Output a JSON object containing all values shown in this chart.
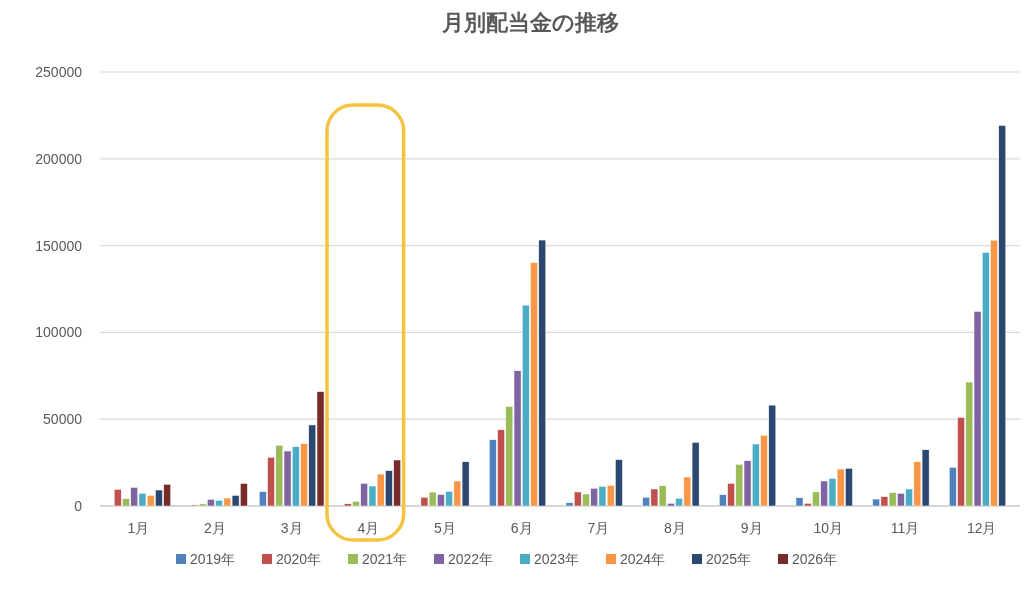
{
  "chart_data": {
    "type": "bar",
    "title": "月別配当金の推移",
    "categories": [
      "1月",
      "2月",
      "3月",
      "4月",
      "5月",
      "6月",
      "7月",
      "8月",
      "9月",
      "10月",
      "11月",
      "12月"
    ],
    "series": [
      {
        "name": "2019年",
        "color": "#4f81bd",
        "values": [
          null,
          null,
          8300,
          null,
          null,
          38200,
          1900,
          5000,
          6500,
          4800,
          4000,
          22300
        ]
      },
      {
        "name": "2020年",
        "color": "#c0504d",
        "values": [
          9600,
          600,
          28000,
          1300,
          5000,
          43900,
          8100,
          9800,
          13000,
          1500,
          5400,
          51000
        ]
      },
      {
        "name": "2021年",
        "color": "#9bbb59",
        "values": [
          4200,
          1200,
          35000,
          2700,
          8000,
          57300,
          6900,
          11700,
          24000,
          8100,
          7700,
          71400
        ]
      },
      {
        "name": "2022年",
        "color": "#8064a2",
        "values": [
          10700,
          3800,
          31700,
          13000,
          6500,
          77900,
          10200,
          1500,
          26100,
          14400,
          7300,
          112100
        ]
      },
      {
        "name": "2023年",
        "color": "#4bacc6",
        "values": [
          7300,
          3300,
          34200,
          11500,
          8400,
          115700,
          11300,
          4400,
          35700,
          15900,
          9800,
          146000
        ]
      },
      {
        "name": "2024年",
        "color": "#f79646",
        "values": [
          6100,
          4600,
          35900,
          18400,
          14400,
          140200,
          11900,
          16700,
          40700,
          21300,
          25500,
          153100
        ]
      },
      {
        "name": "2025年",
        "color": "#2c4770",
        "values": [
          9200,
          6100,
          46700,
          20400,
          25500,
          153200,
          26700,
          36600,
          58100,
          21700,
          32400,
          219200
        ]
      },
      {
        "name": "2026年",
        "color": "#772c2a",
        "values": [
          12500,
          13000,
          65900,
          26500,
          null,
          null,
          null,
          null,
          null,
          null,
          null,
          null
        ]
      }
    ],
    "ylim": [
      0,
      250000
    ],
    "yticks": [
      0,
      50000,
      100000,
      150000,
      200000,
      250000
    ],
    "grid": "y",
    "legend": "bottom"
  }
}
